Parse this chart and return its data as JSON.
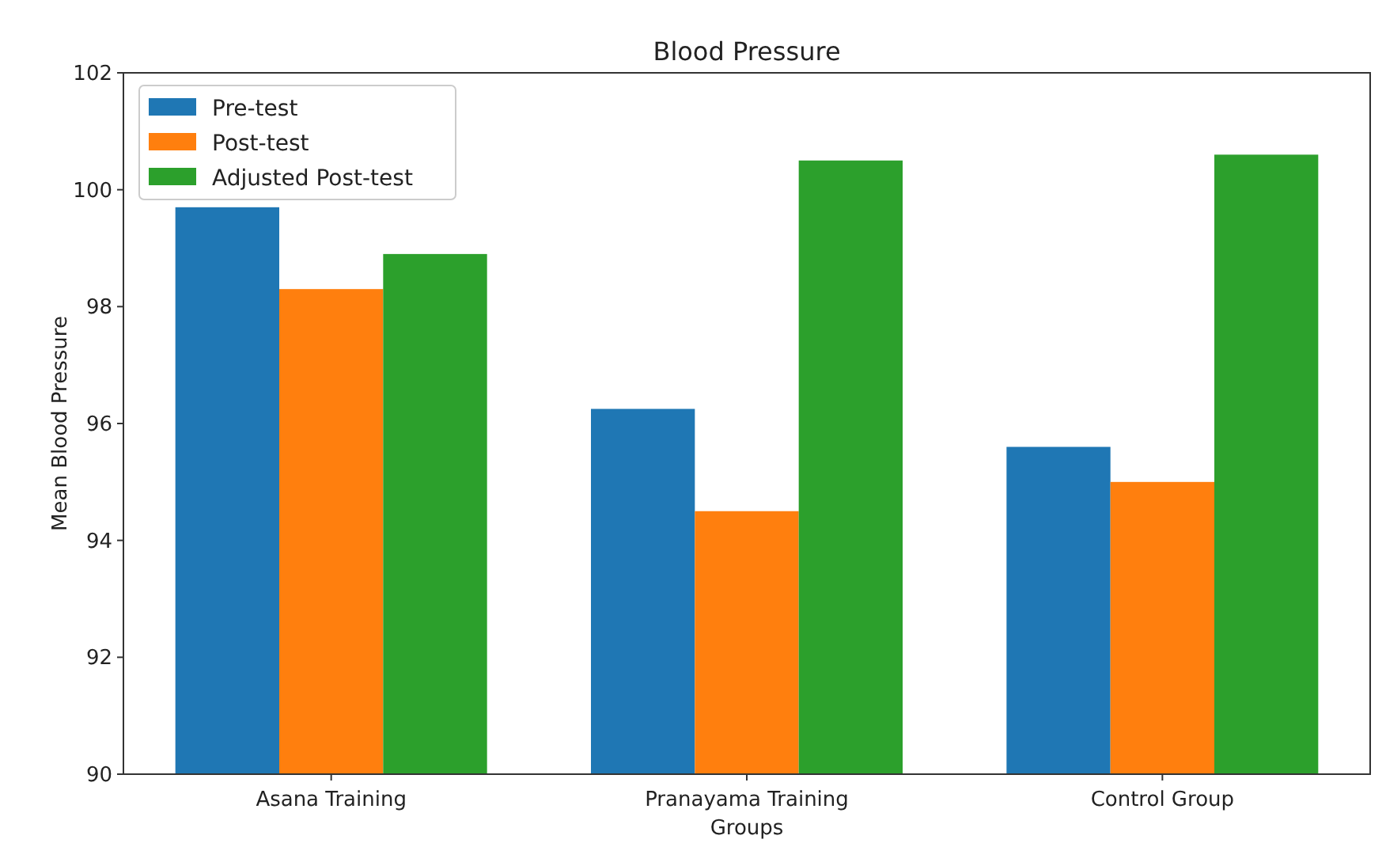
{
  "chart_data": {
    "type": "bar",
    "title": "Blood Pressure",
    "xlabel": "Groups",
    "ylabel": "Mean Blood Pressure",
    "categories": [
      "Asana Training",
      "Pranayama Training",
      "Control Group"
    ],
    "series": [
      {
        "name": "Pre-test",
        "color": "#1f77b4",
        "values": [
          99.7,
          96.25,
          95.6
        ]
      },
      {
        "name": "Post-test",
        "color": "#ff7f0e",
        "values": [
          98.3,
          94.5,
          95.0
        ]
      },
      {
        "name": "Adjusted Post-test",
        "color": "#2ca02c",
        "values": [
          98.9,
          100.5,
          100.6
        ]
      }
    ],
    "ylim": [
      90,
      102
    ],
    "yticks": [
      90,
      92,
      94,
      96,
      98,
      100,
      102
    ],
    "legend": "top left"
  }
}
